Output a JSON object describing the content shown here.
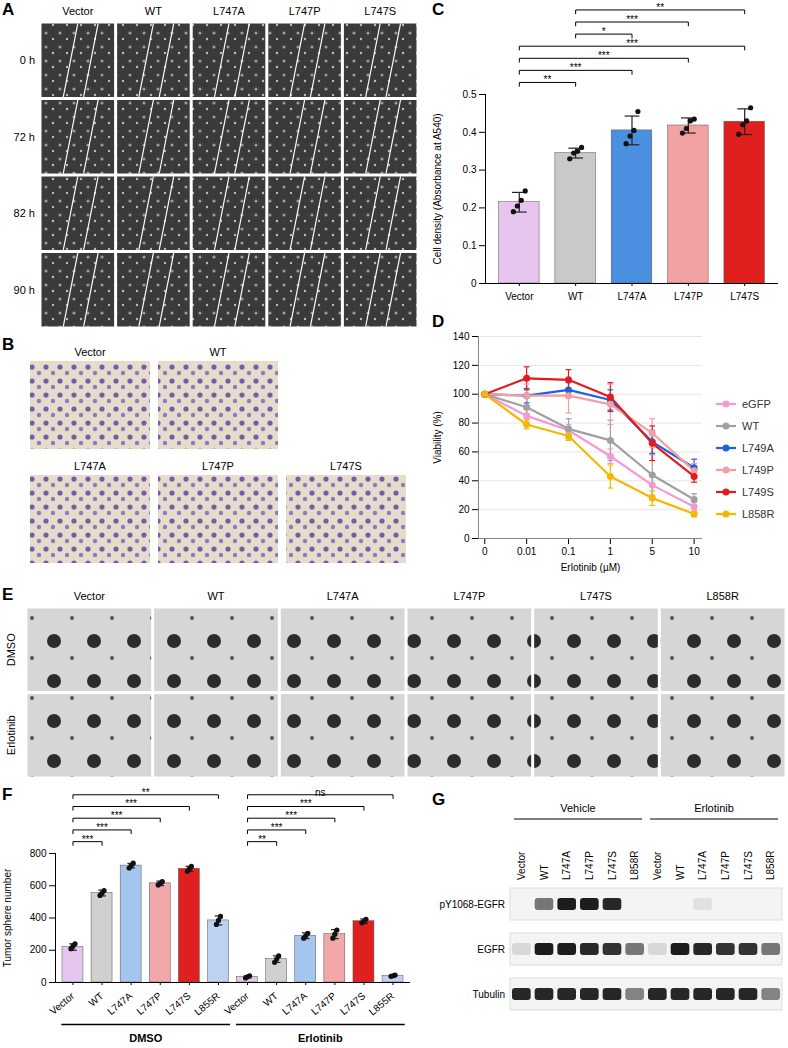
{
  "chart_data": [
    {
      "panel": "C",
      "type": "bar",
      "categories": [
        "Vector",
        "WT",
        "L747A",
        "L747P",
        "L747S"
      ],
      "values": [
        0.215,
        0.345,
        0.405,
        0.418,
        0.428
      ],
      "errors": [
        0.026,
        0.013,
        0.038,
        0.02,
        0.034
      ],
      "points": [
        [
          0.19,
          0.205,
          0.22,
          0.245
        ],
        [
          0.33,
          0.345,
          0.35,
          0.36
        ],
        [
          0.37,
          0.39,
          0.405,
          0.455
        ],
        [
          0.398,
          0.41,
          0.43,
          0.435
        ],
        [
          0.395,
          0.42,
          0.43,
          0.465
        ]
      ],
      "colors": [
        "#e6c6ee",
        "#c9c9c9",
        "#4a8fe0",
        "#f2a2a2",
        "#e0201e"
      ],
      "ylabel": "Cell density (Absorbance at A540)",
      "ylim": [
        0,
        0.5
      ],
      "yticks": [
        0,
        0.1,
        0.2,
        0.3,
        0.4,
        0.5
      ],
      "comparisons": [
        {
          "from": "Vector",
          "to": "WT",
          "label": "**"
        },
        {
          "from": "Vector",
          "to": "L747A",
          "label": "***"
        },
        {
          "from": "Vector",
          "to": "L747P",
          "label": "***"
        },
        {
          "from": "Vector",
          "to": "L747S",
          "label": "***"
        },
        {
          "from": "WT",
          "to": "L747A",
          "label": "*"
        },
        {
          "from": "WT",
          "to": "L747P",
          "label": "***"
        },
        {
          "from": "WT",
          "to": "L747S",
          "label": "**"
        }
      ]
    },
    {
      "panel": "D",
      "type": "line",
      "categories": [
        "0",
        "0.01",
        "0.1",
        "1",
        "5",
        "10"
      ],
      "xlabel": "Erlotinib (µM)",
      "ylabel": "Viability (%)",
      "ylim": [
        0,
        140
      ],
      "yticks": [
        0,
        20,
        40,
        60,
        80,
        100,
        120,
        140
      ],
      "grid": true,
      "legend": "right",
      "marker": "circle",
      "series": [
        {
          "name": "eGFP",
          "color": "#f29ad6",
          "values": [
            100,
            85,
            75,
            57,
            37,
            22
          ],
          "errors": [
            0,
            5,
            4,
            5,
            8,
            3
          ]
        },
        {
          "name": "WT",
          "color": "#a0a0a0",
          "values": [
            100,
            91,
            76,
            68,
            44,
            27
          ],
          "errors": [
            0,
            8,
            7,
            14,
            14,
            4
          ]
        },
        {
          "name": "L749A",
          "color": "#1f5fe0",
          "values": [
            100,
            99,
            103,
            96,
            67,
            49
          ],
          "errors": [
            0,
            5,
            5,
            7,
            8,
            6
          ]
        },
        {
          "name": "L749P",
          "color": "#f4a0a0",
          "values": [
            100,
            99,
            99,
            93,
            73,
            47
          ],
          "errors": [
            0,
            8,
            12,
            14,
            10,
            5
          ]
        },
        {
          "name": "L749S",
          "color": "#e8191a",
          "values": [
            100,
            111,
            110,
            98,
            66,
            43
          ],
          "errors": [
            0,
            8,
            7,
            10,
            12,
            4
          ]
        },
        {
          "name": "L858R",
          "color": "#f5b800",
          "values": [
            100,
            79,
            71,
            43,
            28,
            17
          ],
          "errors": [
            0,
            3,
            3,
            8,
            5,
            2
          ]
        }
      ]
    },
    {
      "panel": "F",
      "type": "bar",
      "categories": [
        "Vector",
        "WT",
        "L747A",
        "L747P",
        "L747S",
        "L855R",
        "Vector",
        "WT",
        "L747A",
        "L747P",
        "L747S",
        "L855R"
      ],
      "groups": [
        "DMSO",
        "DMSO",
        "DMSO",
        "DMSO",
        "DMSO",
        "DMSO",
        "Erlotinib",
        "Erlotinib",
        "Erlotinib",
        "Erlotinib",
        "Erlotinib",
        "Erlotinib"
      ],
      "values": [
        220,
        555,
        725,
        615,
        705,
        385,
        35,
        145,
        290,
        300,
        380,
        42
      ],
      "errors": [
        20,
        18,
        14,
        14,
        16,
        28,
        7,
        20,
        18,
        28,
        14,
        5
      ],
      "points": [
        [
          210,
          225,
          240
        ],
        [
          540,
          555,
          570
        ],
        [
          710,
          725,
          740
        ],
        [
          605,
          615,
          625
        ],
        [
          690,
          705,
          720
        ],
        [
          360,
          385,
          410
        ],
        [
          28,
          35,
          42
        ],
        [
          125,
          145,
          165
        ],
        [
          275,
          290,
          305
        ],
        [
          275,
          300,
          325
        ],
        [
          370,
          380,
          392
        ],
        [
          38,
          42,
          46
        ]
      ],
      "colors": [
        "#e6c6ee",
        "#d0d0d0",
        "#a4c6ee",
        "#f2a8a8",
        "#e0201e",
        "#bcd2f0",
        "#e6c6ee",
        "#d0d0d0",
        "#a4c6ee",
        "#f2a8a8",
        "#e0201e",
        "#bcd2f0"
      ],
      "ylabel": "Tumor sphere number",
      "ylim": [
        0,
        800
      ],
      "yticks": [
        0,
        200,
        400,
        600,
        800
      ],
      "comparisons": [
        {
          "group": "DMSO",
          "from": "Vector",
          "to": "WT",
          "label": "***"
        },
        {
          "group": "DMSO",
          "from": "Vector",
          "to": "L747A",
          "label": "***"
        },
        {
          "group": "DMSO",
          "from": "Vector",
          "to": "L747P",
          "label": "***"
        },
        {
          "group": "DMSO",
          "from": "Vector",
          "to": "L747S",
          "label": "***"
        },
        {
          "group": "DMSO",
          "from": "Vector",
          "to": "L855R",
          "label": "**"
        },
        {
          "group": "Erlotinib",
          "from": "Vector",
          "to": "WT",
          "label": "**"
        },
        {
          "group": "Erlotinib",
          "from": "Vector",
          "to": "L747A",
          "label": "***"
        },
        {
          "group": "Erlotinib",
          "from": "Vector",
          "to": "L747P",
          "label": "***"
        },
        {
          "group": "Erlotinib",
          "from": "Vector",
          "to": "L747S",
          "label": "***"
        },
        {
          "group": "Erlotinib",
          "from": "Vector",
          "to": "L855R",
          "label": "ns"
        }
      ]
    }
  ],
  "image_panels": [
    {
      "panel": "A",
      "type": "image_grid",
      "columns": [
        "Vector",
        "WT",
        "L747A",
        "L747P",
        "L747S"
      ],
      "rows": [
        "0 h",
        "72 h",
        "82 h",
        "90 h"
      ]
    },
    {
      "panel": "B",
      "type": "image_grid",
      "columns": [
        "Vector",
        "WT",
        "L747A",
        "L747P",
        "L747S"
      ]
    },
    {
      "panel": "E",
      "type": "image_grid",
      "columns": [
        "Vector",
        "WT",
        "L747A",
        "L747P",
        "L747S",
        "L858R"
      ],
      "rows": [
        "DMSO",
        "Erlotinib"
      ]
    },
    {
      "panel": "G",
      "type": "blot",
      "groups": [
        "Vehicle",
        "Erlotinib"
      ],
      "lanes": [
        "Vector",
        "WT",
        "L747A",
        "L747P",
        "L747S",
        "L858R"
      ],
      "rows": [
        {
          "name": "pY1068-EGFR",
          "intensity": [
            0,
            0.55,
            0.95,
            0.95,
            0.9,
            0,
            0,
            0,
            0.08,
            0,
            0,
            0
          ]
        },
        {
          "name": "EGFR",
          "intensity": [
            0.12,
            0.95,
            0.95,
            0.9,
            0.85,
            0.55,
            0.12,
            0.95,
            0.9,
            0.85,
            0.85,
            0.55
          ]
        },
        {
          "name": "Tubulin",
          "intensity": [
            0.9,
            0.9,
            0.9,
            0.9,
            0.9,
            0.5,
            0.9,
            0.9,
            0.9,
            0.9,
            0.9,
            0.5
          ]
        }
      ]
    }
  ]
}
